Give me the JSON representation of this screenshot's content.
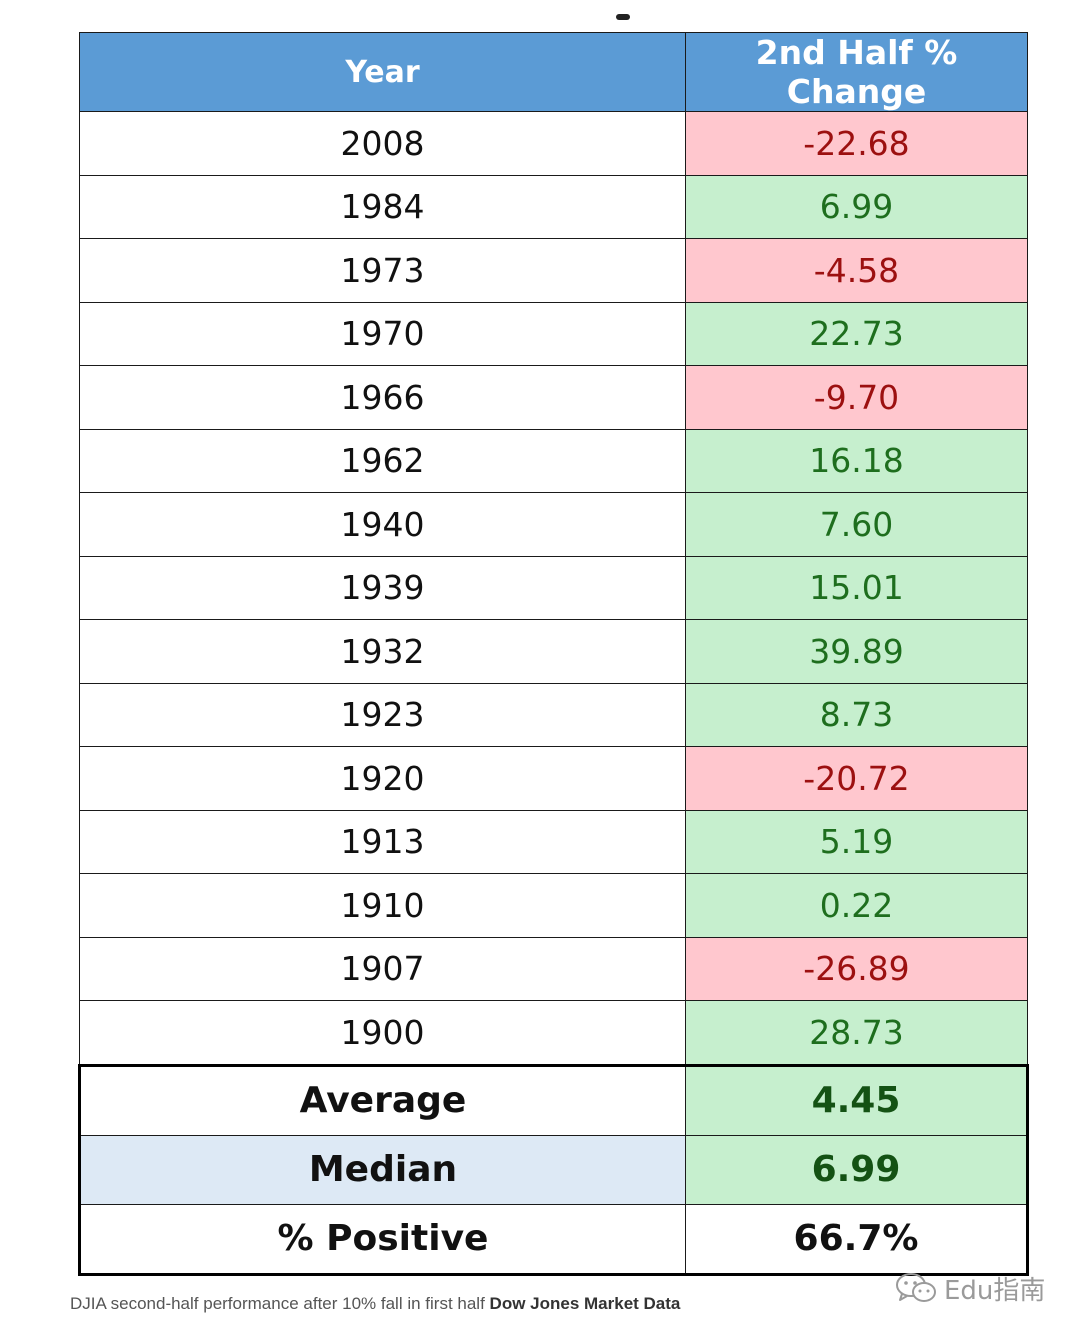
{
  "chart_data": {
    "type": "table",
    "columns": [
      "Year",
      "2nd Half % Change"
    ],
    "rows": [
      {
        "year": "2008",
        "change": "-22.68",
        "sign": "neg"
      },
      {
        "year": "1984",
        "change": "6.99",
        "sign": "pos"
      },
      {
        "year": "1973",
        "change": "-4.58",
        "sign": "neg"
      },
      {
        "year": "1970",
        "change": "22.73",
        "sign": "pos"
      },
      {
        "year": "1966",
        "change": "-9.70",
        "sign": "neg"
      },
      {
        "year": "1962",
        "change": "16.18",
        "sign": "pos"
      },
      {
        "year": "1940",
        "change": "7.60",
        "sign": "pos"
      },
      {
        "year": "1939",
        "change": "15.01",
        "sign": "pos"
      },
      {
        "year": "1932",
        "change": "39.89",
        "sign": "pos"
      },
      {
        "year": "1923",
        "change": "8.73",
        "sign": "pos"
      },
      {
        "year": "1920",
        "change": "-20.72",
        "sign": "neg"
      },
      {
        "year": "1913",
        "change": "5.19",
        "sign": "pos"
      },
      {
        "year": "1910",
        "change": "0.22",
        "sign": "pos"
      },
      {
        "year": "1907",
        "change": "-26.89",
        "sign": "neg"
      },
      {
        "year": "1900",
        "change": "28.73",
        "sign": "pos"
      }
    ],
    "summary": [
      {
        "label": "Average",
        "value": "4.45"
      },
      {
        "label": "Median",
        "value": "6.99"
      },
      {
        "label": "% Positive",
        "value": "66.7%"
      }
    ]
  },
  "caption": {
    "text": "DJIA second-half performance after 10% fall in first half",
    "source": "Dow Jones Market Data"
  },
  "watermark": {
    "text": "Edu指南",
    "icon": "wechat-icon"
  },
  "colors": {
    "header_bg": "#5b9bd5",
    "positive_bg": "#c6efce",
    "positive_text": "#1e6e1e",
    "negative_bg": "#ffc7ce",
    "negative_text": "#9c1010",
    "median_label_bg": "#dde9f5"
  }
}
